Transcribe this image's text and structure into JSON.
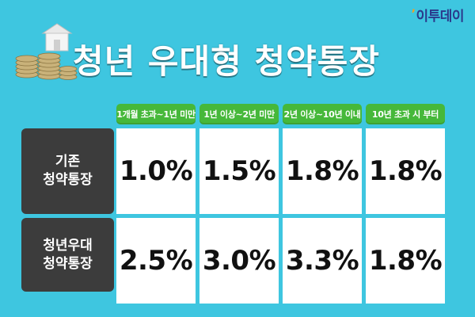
{
  "brand": {
    "name": "이투데이",
    "accent_color": "#f0a020",
    "color": "#2b3a8c"
  },
  "title": "청년 우대형 청약통장",
  "decor": {
    "image": "coins-and-house-icon"
  },
  "columns": [
    "1개월 초과~1년 미만",
    "1년 이상~2년 미만",
    "2년 이상~10년 이내",
    "10년 초과 시 부터"
  ],
  "rows": [
    {
      "label_line1": "기존",
      "label_line2": "청약통장",
      "values": [
        "1.0%",
        "1.5%",
        "1.8%",
        "1.8%"
      ]
    },
    {
      "label_line1": "청년우대",
      "label_line2": "청약통장",
      "values": [
        "2.5%",
        "3.0%",
        "3.3%",
        "1.8%"
      ]
    }
  ],
  "colors": {
    "background": "#3ec6e0",
    "header": "#46b83a",
    "row_label": "#3c3c3c",
    "cell": "#ffffff"
  }
}
